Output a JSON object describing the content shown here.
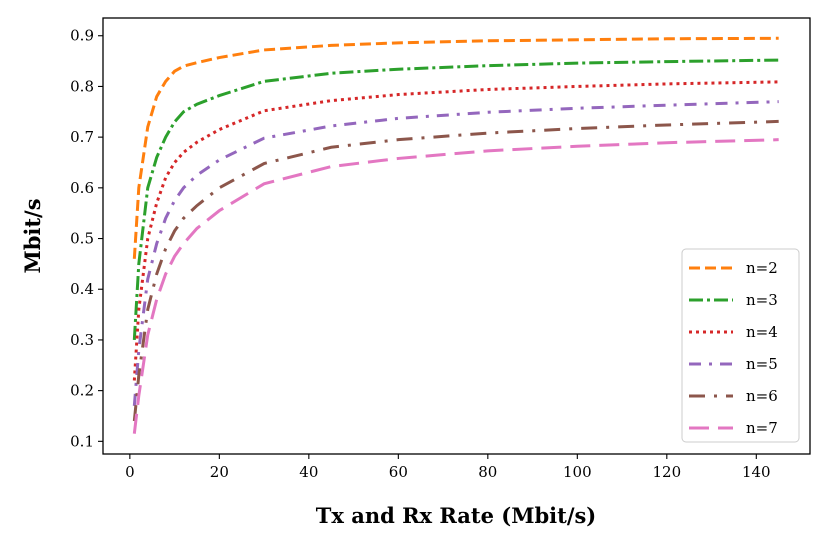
{
  "chart_data": {
    "type": "line",
    "title": "",
    "xlabel": "Tx and Rx Rate (Mbit/s)",
    "ylabel": "Mbit/s",
    "xlim": [
      -6,
      152
    ],
    "ylim": [
      0.075,
      0.935
    ],
    "xticks": [
      0,
      20,
      40,
      60,
      80,
      100,
      120,
      140
    ],
    "yticks": [
      0.1,
      0.2,
      0.3,
      0.4,
      0.5,
      0.6,
      0.7,
      0.8,
      0.9
    ],
    "grid": false,
    "legend_position": "lower-right",
    "x": [
      1,
      2,
      4,
      6,
      8,
      10,
      12,
      15,
      20,
      30,
      45,
      60,
      80,
      100,
      120,
      145
    ],
    "series": [
      {
        "name": "n=2",
        "color": "#ff7f0e",
        "dash": "dashed",
        "values": [
          0.46,
          0.6,
          0.72,
          0.78,
          0.81,
          0.83,
          0.84,
          0.847,
          0.857,
          0.872,
          0.881,
          0.886,
          0.89,
          0.892,
          0.894,
          0.895
        ]
      },
      {
        "name": "n=3",
        "color": "#2ca02c",
        "dash": "dashdot",
        "values": [
          0.3,
          0.45,
          0.6,
          0.66,
          0.7,
          0.73,
          0.75,
          0.765,
          0.782,
          0.81,
          0.826,
          0.834,
          0.841,
          0.846,
          0.849,
          0.852
        ]
      },
      {
        "name": "n=4",
        "color": "#d62728",
        "dash": "dotted",
        "values": [
          0.22,
          0.36,
          0.5,
          0.57,
          0.62,
          0.65,
          0.67,
          0.69,
          0.715,
          0.752,
          0.772,
          0.784,
          0.794,
          0.8,
          0.805,
          0.809
        ]
      },
      {
        "name": "n=5",
        "color": "#9467bd",
        "dash": "dashdot2",
        "values": [
          0.17,
          0.28,
          0.42,
          0.49,
          0.54,
          0.575,
          0.6,
          0.625,
          0.655,
          0.698,
          0.722,
          0.737,
          0.749,
          0.757,
          0.763,
          0.77
        ]
      },
      {
        "name": "n=6",
        "color": "#8c564b",
        "dash": "longdashdot",
        "values": [
          0.14,
          0.23,
          0.36,
          0.43,
          0.48,
          0.515,
          0.54,
          0.565,
          0.6,
          0.648,
          0.68,
          0.695,
          0.708,
          0.717,
          0.724,
          0.731
        ]
      },
      {
        "name": "n=7",
        "color": "#e377c2",
        "dash": "longdash",
        "values": [
          0.115,
          0.19,
          0.31,
          0.38,
          0.43,
          0.465,
          0.49,
          0.52,
          0.555,
          0.608,
          0.642,
          0.658,
          0.673,
          0.682,
          0.689,
          0.695
        ]
      }
    ]
  }
}
